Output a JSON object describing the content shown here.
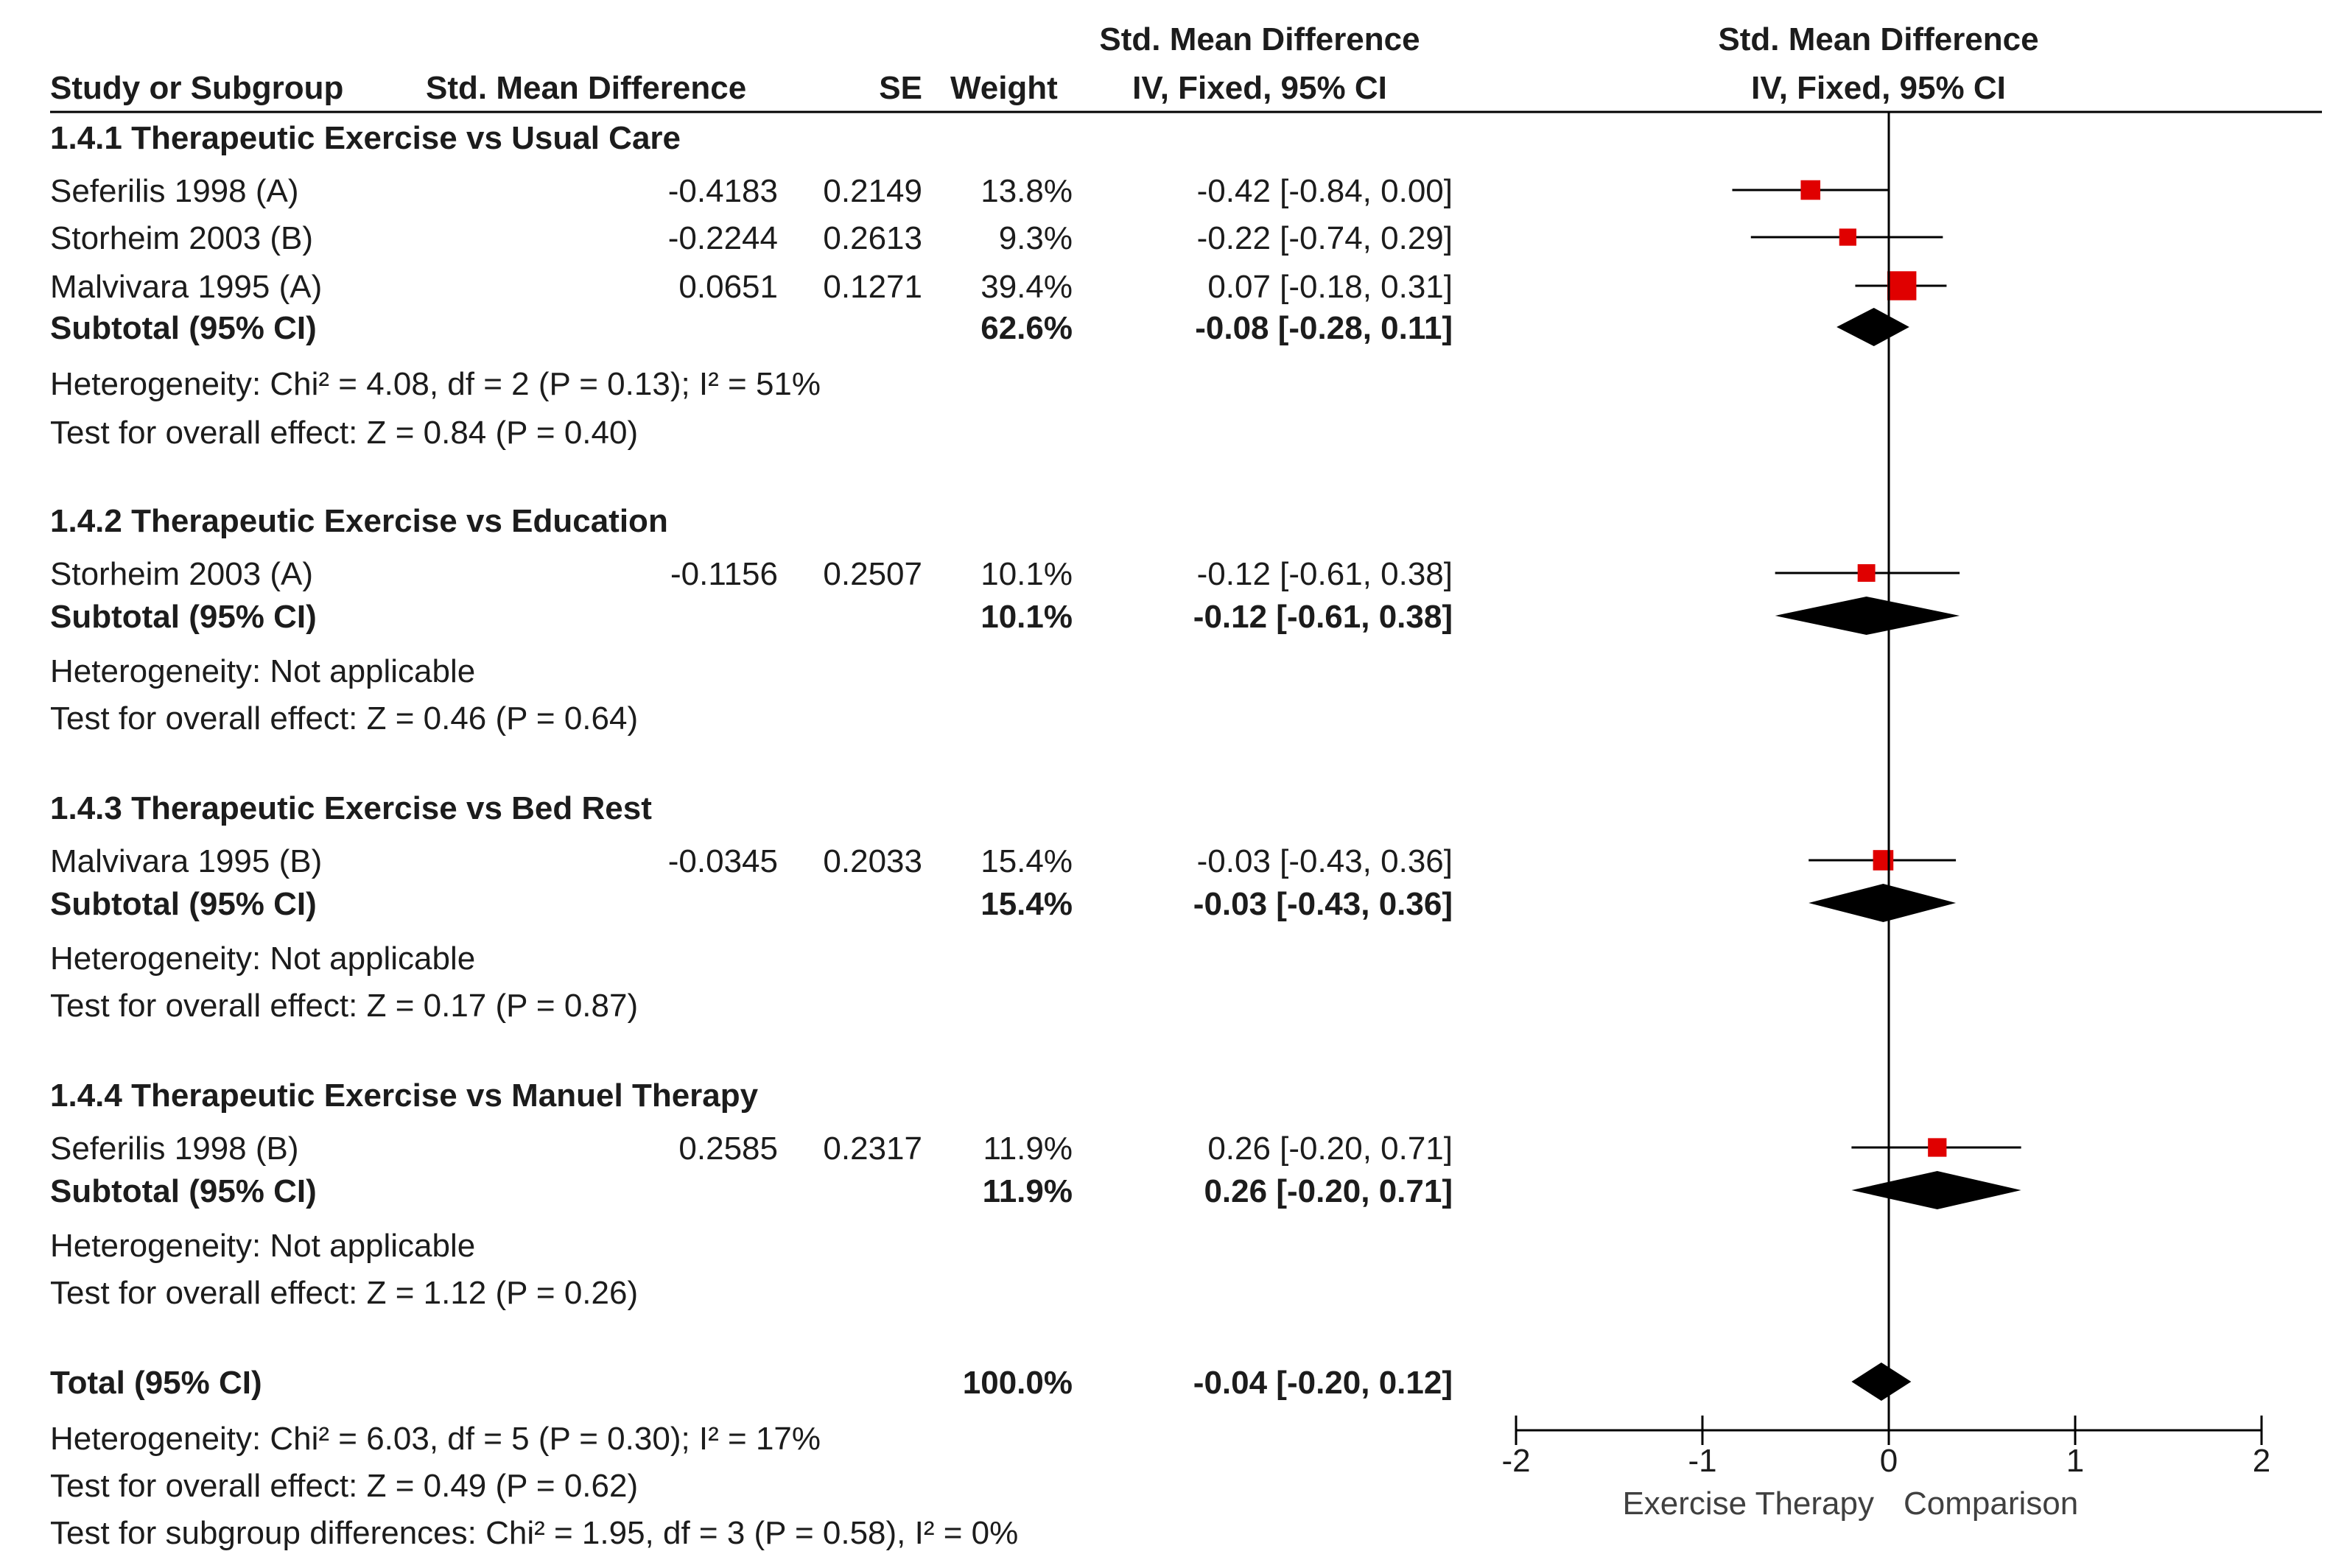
{
  "headers": {
    "study": "Study or Subgroup",
    "smd": "Std. Mean Difference",
    "se": "SE",
    "weight": "Weight",
    "ci_top": "Std. Mean Difference",
    "ci_bottom": "IV, Fixed, 95% CI",
    "plot_top": "Std. Mean Difference",
    "plot_bottom": "IV, Fixed, 95% CI"
  },
  "chart_data": {
    "type": "forest",
    "measure": "Std. Mean Difference (IV, Fixed, 95% CI)",
    "xlim": [
      -2,
      2
    ],
    "ticks": [
      "-2",
      "-1",
      "0",
      "1",
      "2"
    ],
    "tick_values": [
      -2,
      -1,
      0,
      1,
      2
    ],
    "xlabel_left": "Exercise Therapy",
    "xlabel_right": "Comparison",
    "colors": {
      "study_marker": "#e00000",
      "diamond": "#000000",
      "line": "#000000"
    },
    "subgroups": [
      {
        "title": "1.4.1 Therapeutic Exercise vs Usual Care",
        "studies": [
          {
            "name": "Seferilis 1998 (A)",
            "smd": "-0.4183",
            "se": "0.2149",
            "weight": "13.8%",
            "ci_text": "-0.42 [-0.84, 0.00]",
            "est": -0.42,
            "lo": -0.84,
            "hi": 0.0,
            "w": 13.8
          },
          {
            "name": "Storheim 2003 (B)",
            "smd": "-0.2244",
            "se": "0.2613",
            "weight": "9.3%",
            "ci_text": "-0.22 [-0.74, 0.29]",
            "est": -0.22,
            "lo": -0.74,
            "hi": 0.29,
            "w": 9.3
          },
          {
            "name": "Malvivara 1995 (A)",
            "smd": "0.0651",
            "se": "0.1271",
            "weight": "39.4%",
            "ci_text": "0.07 [-0.18, 0.31]",
            "est": 0.07,
            "lo": -0.18,
            "hi": 0.31,
            "w": 39.4
          }
        ],
        "subtotal": {
          "label": "Subtotal (95% CI)",
          "weight": "62.6%",
          "ci_text": "-0.08 [-0.28, 0.11]",
          "est": -0.08,
          "lo": -0.28,
          "hi": 0.11
        },
        "notes": [
          "Heterogeneity: Chi² = 4.08, df = 2 (P = 0.13); I² = 51%",
          "Test for overall effect: Z = 0.84 (P = 0.40)"
        ]
      },
      {
        "title": "1.4.2 Therapeutic Exercise vs Education",
        "studies": [
          {
            "name": "Storheim 2003 (A)",
            "smd": "-0.1156",
            "se": "0.2507",
            "weight": "10.1%",
            "ci_text": "-0.12 [-0.61, 0.38]",
            "est": -0.12,
            "lo": -0.61,
            "hi": 0.38,
            "w": 10.1
          }
        ],
        "subtotal": {
          "label": "Subtotal (95% CI)",
          "weight": "10.1%",
          "ci_text": "-0.12 [-0.61, 0.38]",
          "est": -0.12,
          "lo": -0.61,
          "hi": 0.38
        },
        "notes": [
          "Heterogeneity: Not applicable",
          "Test for overall effect: Z = 0.46 (P = 0.64)"
        ]
      },
      {
        "title": "1.4.3 Therapeutic Exercise vs Bed Rest",
        "studies": [
          {
            "name": "Malvivara 1995 (B)",
            "smd": "-0.0345",
            "se": "0.2033",
            "weight": "15.4%",
            "ci_text": "-0.03 [-0.43, 0.36]",
            "est": -0.03,
            "lo": -0.43,
            "hi": 0.36,
            "w": 15.4
          }
        ],
        "subtotal": {
          "label": "Subtotal (95% CI)",
          "weight": "15.4%",
          "ci_text": "-0.03 [-0.43, 0.36]",
          "est": -0.03,
          "lo": -0.43,
          "hi": 0.36
        },
        "notes": [
          "Heterogeneity: Not applicable",
          "Test for overall effect: Z = 0.17 (P = 0.87)"
        ]
      },
      {
        "title": "1.4.4 Therapeutic Exercise vs Manuel Therapy",
        "studies": [
          {
            "name": "Seferilis 1998 (B)",
            "smd": "0.2585",
            "se": "0.2317",
            "weight": "11.9%",
            "ci_text": "0.26 [-0.20, 0.71]",
            "est": 0.26,
            "lo": -0.2,
            "hi": 0.71,
            "w": 11.9
          }
        ],
        "subtotal": {
          "label": "Subtotal (95% CI)",
          "weight": "11.9%",
          "ci_text": "0.26 [-0.20, 0.71]",
          "est": 0.26,
          "lo": -0.2,
          "hi": 0.71
        },
        "notes": [
          "Heterogeneity: Not applicable",
          "Test for overall effect: Z = 1.12 (P = 0.26)"
        ]
      }
    ],
    "total": {
      "label": "Total (95% CI)",
      "weight": "100.0%",
      "ci_text": "-0.04 [-0.20, 0.12]",
      "est": -0.04,
      "lo": -0.2,
      "hi": 0.12
    },
    "total_notes": [
      "Heterogeneity: Chi² = 6.03, df = 5 (P = 0.30); I² = 17%",
      "Test for overall effect: Z = 0.49 (P = 0.62)",
      "Test for subgroup differences: Chi² = 1.95, df = 3 (P = 0.58), I² = 0%"
    ]
  }
}
